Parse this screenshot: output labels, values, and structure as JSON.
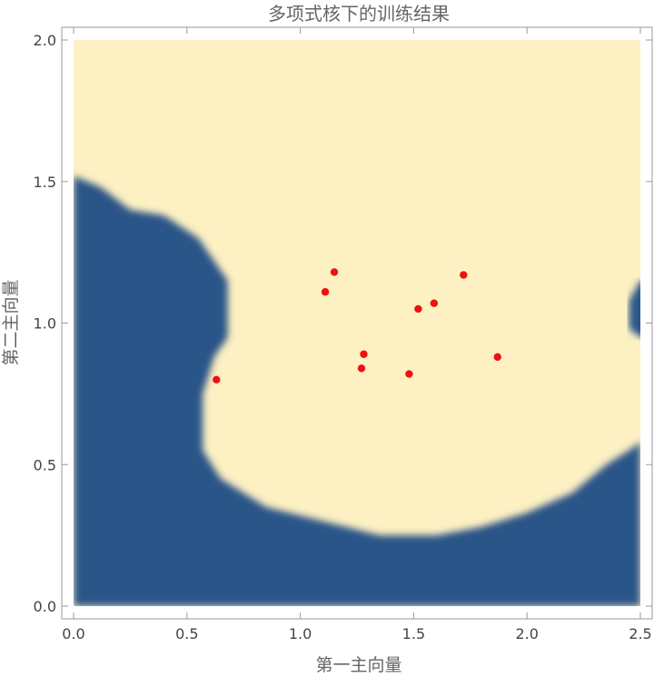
{
  "chart_data": {
    "type": "scatter",
    "title": "多项式核下的训练结果",
    "xlabel": "第一主向量",
    "ylabel": "第二主向量",
    "xlim": [
      0,
      2.5
    ],
    "ylim": [
      0,
      2.0
    ],
    "xticks": [
      "0.0",
      "0.5",
      "1.0",
      "1.5",
      "2.0",
      "2.5"
    ],
    "yticks": [
      "0.0",
      "0.5",
      "1.0",
      "1.5",
      "2.0"
    ],
    "colors": {
      "region_a": "#fdf0c3",
      "region_b": "#2b5488",
      "points": "#ee1111"
    },
    "decision_boundary": [
      [
        0.0,
        1.52
      ],
      [
        0.12,
        1.48
      ],
      [
        0.25,
        1.4
      ],
      [
        0.4,
        1.38
      ],
      [
        0.55,
        1.3
      ],
      [
        0.68,
        1.15
      ],
      [
        0.68,
        0.95
      ],
      [
        0.62,
        0.88
      ],
      [
        0.57,
        0.75
      ],
      [
        0.57,
        0.55
      ],
      [
        0.65,
        0.45
      ],
      [
        0.85,
        0.35
      ],
      [
        1.1,
        0.3
      ],
      [
        1.2,
        0.28
      ],
      [
        1.35,
        0.25
      ],
      [
        1.6,
        0.25
      ],
      [
        1.8,
        0.28
      ],
      [
        2.0,
        0.33
      ],
      [
        2.2,
        0.4
      ],
      [
        2.35,
        0.5
      ],
      [
        2.45,
        0.55
      ],
      [
        2.5,
        0.58
      ]
    ],
    "right_notch": [
      [
        2.5,
        1.15
      ],
      [
        2.45,
        1.08
      ],
      [
        2.45,
        0.98
      ],
      [
        2.5,
        0.95
      ]
    ],
    "series": [
      {
        "x": [
          1.15,
          1.11,
          1.72,
          1.59,
          1.52,
          0.63,
          1.28,
          1.27,
          1.48,
          1.87
        ],
        "y": [
          1.18,
          1.11,
          1.17,
          1.07,
          1.05,
          0.8,
          0.89,
          0.84,
          0.82,
          0.88
        ]
      }
    ]
  }
}
